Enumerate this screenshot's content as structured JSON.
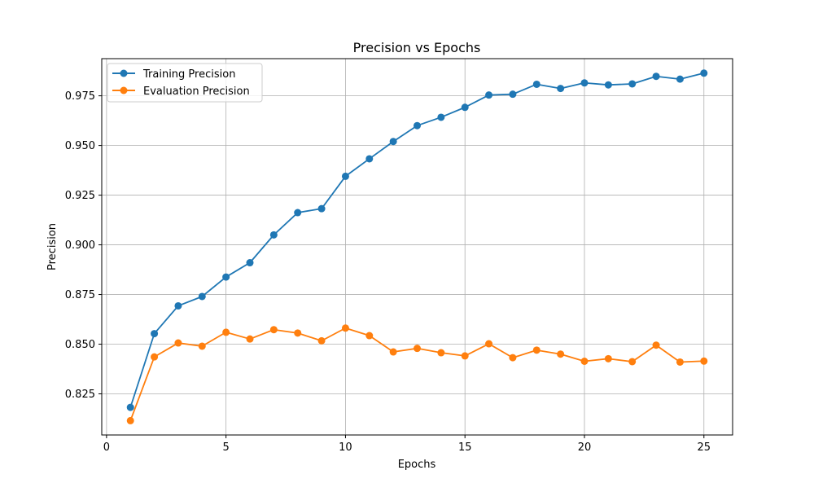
{
  "chart_data": {
    "type": "line",
    "title": "Precision vs Epochs",
    "xlabel": "Epochs",
    "ylabel": "Precision",
    "x": [
      1,
      2,
      3,
      4,
      5,
      6,
      7,
      8,
      9,
      10,
      11,
      12,
      13,
      14,
      15,
      16,
      17,
      18,
      19,
      20,
      21,
      22,
      23,
      24,
      25
    ],
    "series": [
      {
        "name": "Training Precision",
        "color": "#1f77b4",
        "marker": "circle",
        "values": [
          0.8182,
          0.8553,
          0.8693,
          0.874,
          0.8838,
          0.891,
          0.905,
          0.9162,
          0.9182,
          0.9345,
          0.9433,
          0.952,
          0.96,
          0.9642,
          0.9692,
          0.9754,
          0.9758,
          0.9808,
          0.9787,
          0.9815,
          0.9805,
          0.981,
          0.9848,
          0.9834,
          0.9864
        ]
      },
      {
        "name": "Evaluation Precision",
        "color": "#ff7f0e",
        "marker": "circle",
        "values": [
          0.8115,
          0.8436,
          0.8506,
          0.849,
          0.856,
          0.8526,
          0.8573,
          0.8556,
          0.8517,
          0.8581,
          0.8543,
          0.8461,
          0.8479,
          0.8457,
          0.8441,
          0.8502,
          0.8432,
          0.847,
          0.845,
          0.8414,
          0.8427,
          0.8412,
          0.8495,
          0.841,
          0.8415
        ]
      }
    ],
    "xlim": [
      -0.2,
      26.2
    ],
    "ylim": [
      0.8043,
      0.9937
    ],
    "xticks": [
      0,
      5,
      10,
      15,
      20,
      25
    ],
    "xtick_labels": [
      "0",
      "5",
      "10",
      "15",
      "20",
      "25"
    ],
    "yticks": [
      0.825,
      0.85,
      0.875,
      0.9,
      0.925,
      0.95,
      0.975
    ],
    "ytick_labels": [
      "0.825",
      "0.850",
      "0.875",
      "0.900",
      "0.925",
      "0.950",
      "0.975"
    ],
    "grid": true,
    "legend_position": "top-left"
  }
}
